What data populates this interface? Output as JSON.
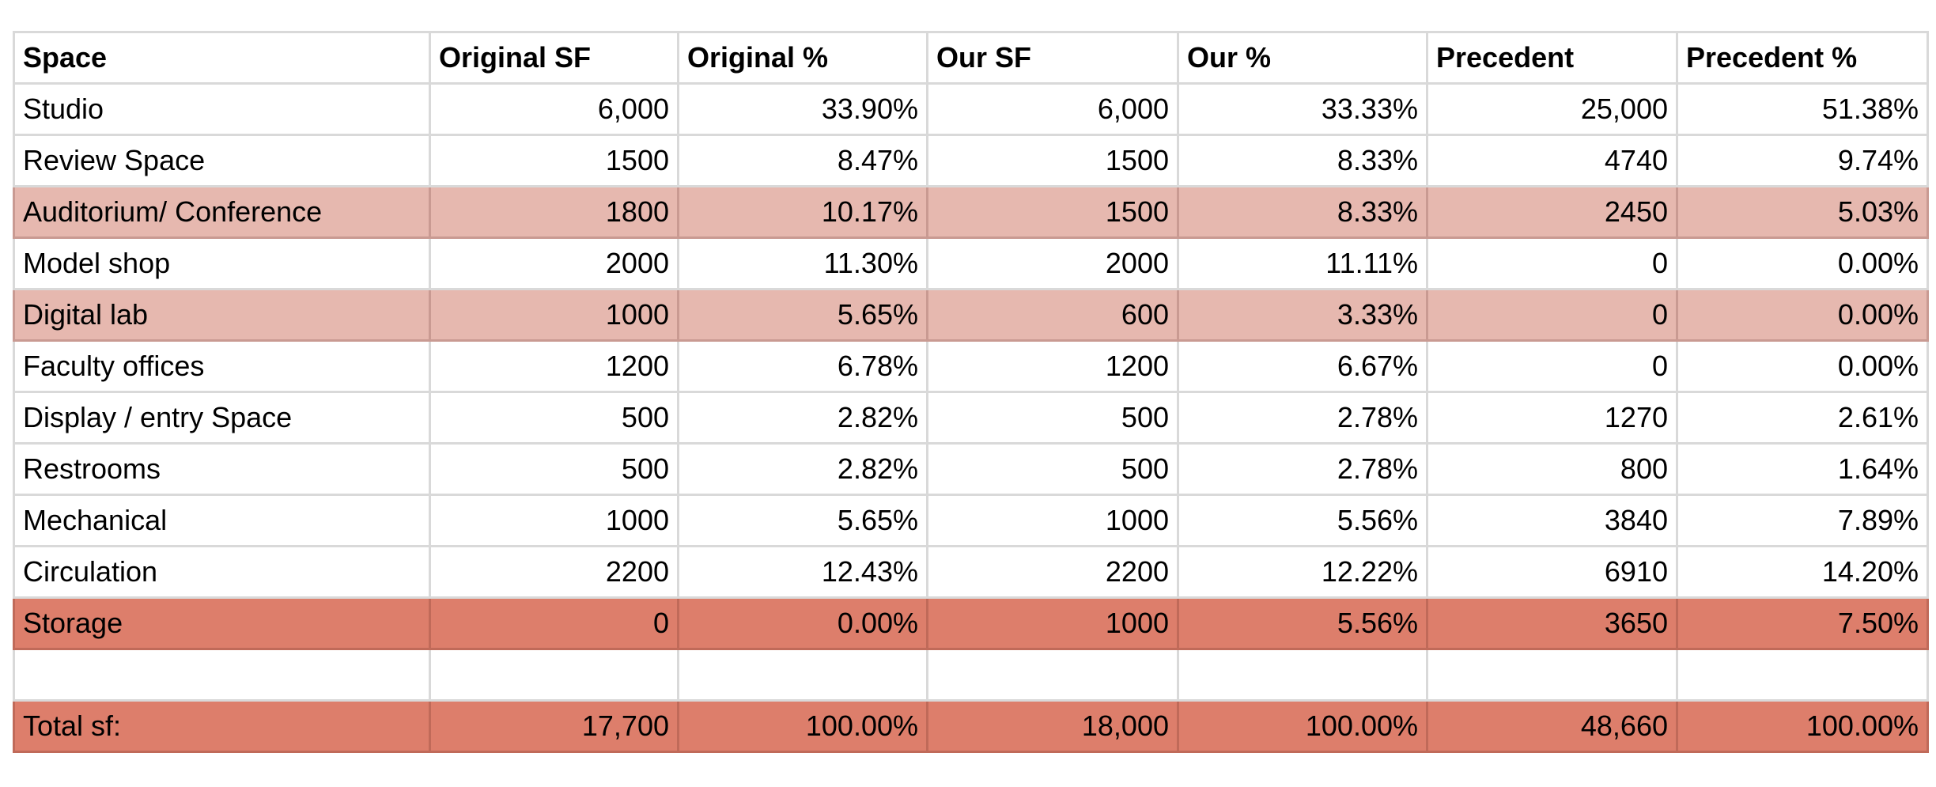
{
  "table": {
    "header": [
      "Space",
      "Original SF",
      "Original %",
      "Our SF",
      "Our %",
      "Precedent",
      "Precedent %"
    ],
    "rows": [
      [
        "Studio",
        "6,000",
        "33.90%",
        "6,000",
        "33.33%",
        "25,000",
        "51.38%"
      ],
      [
        "Review Space",
        "1500",
        "8.47%",
        "1500",
        "8.33%",
        "4740",
        "9.74%"
      ],
      [
        "Auditorium/ Conference",
        "1800",
        "10.17%",
        "1500",
        "8.33%",
        "2450",
        "5.03%"
      ],
      [
        "Model shop",
        "2000",
        "11.30%",
        "2000",
        "11.11%",
        "0",
        "0.00%"
      ],
      [
        "Digital lab",
        "1000",
        "5.65%",
        "600",
        "3.33%",
        "0",
        "0.00%"
      ],
      [
        "Faculty offices",
        "1200",
        "6.78%",
        "1200",
        "6.67%",
        "0",
        "0.00%"
      ],
      [
        "Display / entry Space",
        "500",
        "2.82%",
        "500",
        "2.78%",
        "1270",
        "2.61%"
      ],
      [
        "Restrooms",
        "500",
        "2.82%",
        "500",
        "2.78%",
        "800",
        "1.64%"
      ],
      [
        "Mechanical",
        "1000",
        "5.65%",
        "1000",
        "5.56%",
        "3840",
        "7.89%"
      ],
      [
        "Circulation",
        "2200",
        "12.43%",
        "2200",
        "12.22%",
        "6910",
        "14.20%"
      ],
      [
        "Storage",
        "0",
        "0.00%",
        "1000",
        "5.56%",
        "3650",
        "7.50%"
      ]
    ],
    "footer": [
      "Total sf:",
      "17,700",
      "100.00%",
      "18,000",
      "100.00%",
      "48,660",
      "100.00%"
    ]
  }
}
